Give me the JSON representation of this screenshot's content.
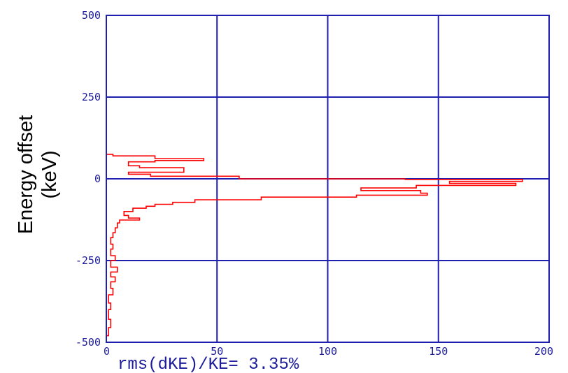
{
  "chart_data": {
    "type": "step-histogram",
    "ylabel": [
      "Energy offset",
      "(keV)"
    ],
    "xlabel": "",
    "xlim": [
      0,
      200
    ],
    "ylim": [
      -500,
      500
    ],
    "xticks": [
      "0",
      "50",
      "100",
      "150",
      "200"
    ],
    "yticks": [
      "500",
      "250",
      "0",
      "-250",
      "-500"
    ],
    "grid": true,
    "annotation": "rms(dKE)/KE= 3.35%",
    "colors": {
      "axes": "#1f1fb0",
      "series": "#ff0000",
      "text": "#1c1c9a"
    },
    "series": [
      {
        "values": [
          [
            0,
            500
          ],
          [
            0,
            75
          ],
          [
            3,
            75
          ],
          [
            3,
            70
          ],
          [
            22,
            70
          ],
          [
            22,
            62
          ],
          [
            44,
            62
          ],
          [
            44,
            56
          ],
          [
            22,
            56
          ],
          [
            22,
            52
          ],
          [
            10,
            52
          ],
          [
            10,
            40
          ],
          [
            15,
            40
          ],
          [
            15,
            34
          ],
          [
            35,
            34
          ],
          [
            35,
            20
          ],
          [
            10,
            20
          ],
          [
            10,
            14
          ],
          [
            20,
            14
          ],
          [
            20,
            8
          ],
          [
            60,
            8
          ],
          [
            60,
            0
          ],
          [
            135,
            0
          ],
          [
            135,
            -2
          ],
          [
            188,
            -2
          ],
          [
            188,
            -8
          ],
          [
            155,
            -8
          ],
          [
            155,
            -14
          ],
          [
            185,
            -14
          ],
          [
            185,
            -20
          ],
          [
            140,
            -20
          ],
          [
            140,
            -28
          ],
          [
            115,
            -28
          ],
          [
            115,
            -36
          ],
          [
            142,
            -36
          ],
          [
            142,
            -44
          ],
          [
            145,
            -44
          ],
          [
            145,
            -50
          ],
          [
            113,
            -50
          ],
          [
            113,
            -56
          ],
          [
            70,
            -56
          ],
          [
            70,
            -64
          ],
          [
            40,
            -64
          ],
          [
            40,
            -72
          ],
          [
            30,
            -72
          ],
          [
            30,
            -78
          ],
          [
            22,
            -78
          ],
          [
            22,
            -84
          ],
          [
            18,
            -84
          ],
          [
            18,
            -90
          ],
          [
            12,
            -90
          ],
          [
            12,
            -100
          ],
          [
            8,
            -100
          ],
          [
            8,
            -112
          ],
          [
            10,
            -112
          ],
          [
            10,
            -120
          ],
          [
            15,
            -120
          ],
          [
            15,
            -126
          ],
          [
            6,
            -126
          ],
          [
            6,
            -135
          ],
          [
            5,
            -135
          ],
          [
            5,
            -150
          ],
          [
            4,
            -150
          ],
          [
            4,
            -165
          ],
          [
            3,
            -165
          ],
          [
            3,
            -180
          ],
          [
            2,
            -180
          ],
          [
            2,
            -200
          ],
          [
            3,
            -200
          ],
          [
            3,
            -215
          ],
          [
            2,
            -215
          ],
          [
            2,
            -235
          ],
          [
            4,
            -235
          ],
          [
            4,
            -250
          ],
          [
            2,
            -250
          ],
          [
            2,
            -270
          ],
          [
            5,
            -270
          ],
          [
            5,
            -285
          ],
          [
            2,
            -285
          ],
          [
            2,
            -300
          ],
          [
            4,
            -300
          ],
          [
            4,
            -315
          ],
          [
            2,
            -315
          ],
          [
            2,
            -335
          ],
          [
            3,
            -335
          ],
          [
            3,
            -355
          ],
          [
            1,
            -355
          ],
          [
            1,
            -380
          ],
          [
            2,
            -380
          ],
          [
            2,
            -400
          ],
          [
            1,
            -400
          ],
          [
            1,
            -430
          ],
          [
            2,
            -430
          ],
          [
            2,
            -455
          ],
          [
            1,
            -455
          ],
          [
            1,
            -480
          ],
          [
            0,
            -480
          ],
          [
            0,
            -500
          ]
        ]
      }
    ]
  }
}
